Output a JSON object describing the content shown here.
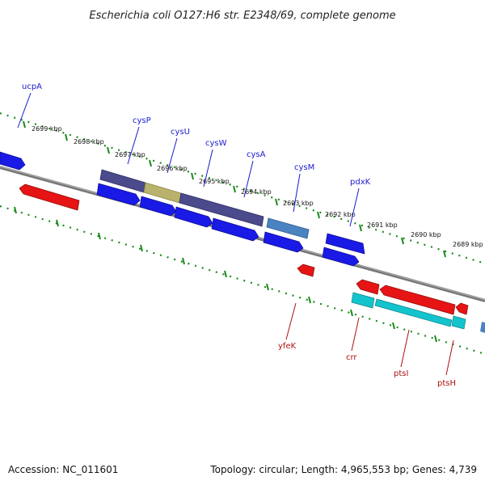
{
  "title": "Escherichia coli O127:H6 str. E2348/69, complete genome",
  "footer": {
    "accession": "Accession: NC_011601",
    "summary": "Topology: circular; Length: 4,965,553 bp; Genes: 4,739"
  },
  "colors": {
    "forward_gene": "#1a1ae6",
    "reverse_gene": "#e61414",
    "operon_dark": "#4b4a8c",
    "operon_highlight": "#b8b26c",
    "cyan_gene": "#14c4cc",
    "steel_gene": "#4a84c0",
    "backbone": "#7a7a7a",
    "ticks": "#1b8a1b",
    "forward_label": "#1a1acc",
    "reverse_label": "#b01010"
  },
  "kbp_ticks": [
    {
      "label": "2699 kbp"
    },
    {
      "label": "2698 kbp"
    },
    {
      "label": "2697 kbp"
    },
    {
      "label": "2696 kbp"
    },
    {
      "label": "2695 kbp"
    },
    {
      "label": "2694 kbp"
    },
    {
      "label": "2693 kbp"
    },
    {
      "label": "2692 kbp"
    },
    {
      "label": "2691 kbp"
    },
    {
      "label": "2690 kbp"
    },
    {
      "label": "2689 kbp"
    }
  ],
  "forward_labels": [
    {
      "label": "ucpA"
    },
    {
      "label": "cysP"
    },
    {
      "label": "cysU"
    },
    {
      "label": "cysW"
    },
    {
      "label": "cysA"
    },
    {
      "label": "cysM"
    },
    {
      "label": "pdxK"
    }
  ],
  "reverse_labels": [
    {
      "label": "yfeK"
    },
    {
      "label": "crr"
    },
    {
      "label": "ptsI"
    },
    {
      "label": "ptsH"
    }
  ]
}
